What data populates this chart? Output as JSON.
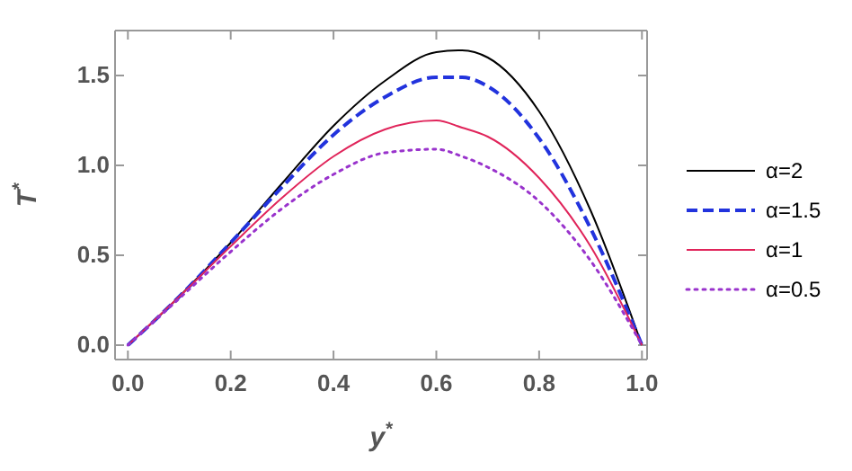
{
  "chart_data": {
    "type": "line",
    "xlabel": "y$^{*}$",
    "ylabel": "T$^{*}$",
    "x": [
      0,
      0.1,
      0.2,
      0.3,
      0.4,
      0.5,
      0.6,
      0.65,
      0.7,
      0.8,
      0.9,
      1.0
    ],
    "series": [
      {
        "name": "α=2",
        "color": "#000000",
        "line_style": "solid",
        "values": [
          0,
          0.27,
          0.57,
          0.9,
          1.22,
          1.47,
          1.63,
          1.64,
          1.6,
          1.3,
          0.75,
          0
        ]
      },
      {
        "name": "α=1.5",
        "color": "#2233dd",
        "line_style": "dashed",
        "values": [
          0,
          0.27,
          0.57,
          0.88,
          1.17,
          1.38,
          1.49,
          1.49,
          1.44,
          1.15,
          0.65,
          0
        ]
      },
      {
        "name": "α=1",
        "color": "#e0245a",
        "line_style": "solid",
        "values": [
          0,
          0.27,
          0.55,
          0.82,
          1.05,
          1.2,
          1.25,
          1.21,
          1.16,
          0.93,
          0.55,
          0
        ]
      },
      {
        "name": "α=0.5",
        "color": "#9933cc",
        "line_style": "dotted",
        "values": [
          0,
          0.26,
          0.52,
          0.76,
          0.95,
          1.07,
          1.09,
          1.05,
          0.99,
          0.8,
          0.47,
          0
        ]
      }
    ],
    "xlim": [
      -0.025,
      1.01
    ],
    "ylim": [
      -0.08,
      1.75
    ],
    "xticks": [
      {
        "value": 0,
        "label": "0.0"
      },
      0.2,
      0.4,
      0.6,
      0.8,
      {
        "value": 1,
        "label": "1.0"
      }
    ],
    "yticks": [
      {
        "value": 0,
        "label": "0.0"
      },
      0.5,
      {
        "value": 1,
        "label": "1.0"
      },
      1.5
    ],
    "legend": "right",
    "grid": false,
    "marker": "none"
  }
}
